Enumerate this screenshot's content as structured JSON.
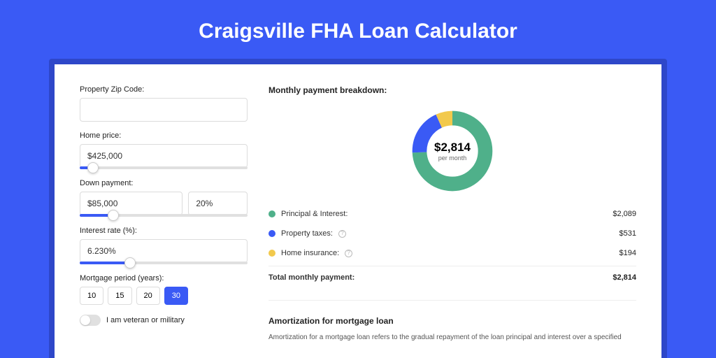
{
  "page": {
    "title": "Craigsville FHA Loan Calculator",
    "background_color": "#3a5af5",
    "shadow_color": "#2e47c9"
  },
  "form": {
    "zip": {
      "label": "Property Zip Code:",
      "value": ""
    },
    "home_price": {
      "label": "Home price:",
      "value": "$425,000",
      "slider_pct": 8
    },
    "down_payment": {
      "label": "Down payment:",
      "value": "$85,000",
      "pct": "20%",
      "slider_pct": 20
    },
    "interest_rate": {
      "label": "Interest rate (%):",
      "value": "6.230%",
      "slider_pct": 30
    },
    "mortgage_period": {
      "label": "Mortgage period (years):",
      "options": [
        "10",
        "15",
        "20",
        "30"
      ],
      "selected": "30"
    },
    "veteran": {
      "label": "I am veteran or military",
      "checked": false
    }
  },
  "breakdown": {
    "title": "Monthly payment breakdown:",
    "donut": {
      "amount": "$2,814",
      "sub": "per month",
      "slices": [
        {
          "label": "Principal & Interest:",
          "value": 2089,
          "display": "$2,089",
          "color": "#4fb08a",
          "has_info": false
        },
        {
          "label": "Property taxes:",
          "value": 531,
          "display": "$531",
          "color": "#3a5af5",
          "has_info": true
        },
        {
          "label": "Home insurance:",
          "value": 194,
          "display": "$194",
          "color": "#f2c94c",
          "has_info": true
        }
      ]
    },
    "total": {
      "label": "Total monthly payment:",
      "display": "$2,814"
    }
  },
  "amortization": {
    "title": "Amortization for mortgage loan",
    "text": "Amortization for a mortgage loan refers to the gradual repayment of the loan principal and interest over a specified"
  }
}
